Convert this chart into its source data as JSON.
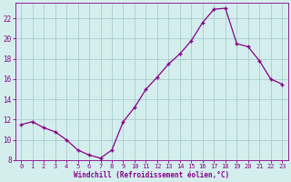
{
  "x": [
    0,
    1,
    2,
    3,
    4,
    5,
    6,
    7,
    8,
    9,
    10,
    11,
    12,
    13,
    14,
    15,
    16,
    17,
    18,
    19,
    20,
    21,
    22,
    23
  ],
  "y": [
    11.5,
    11.8,
    11.2,
    10.8,
    10.0,
    9.0,
    8.5,
    8.2,
    9.0,
    11.8,
    13.2,
    15.0,
    16.2,
    17.5,
    18.5,
    19.8,
    21.6,
    22.9,
    23.0,
    19.5,
    19.2,
    17.8,
    16.0,
    15.5
  ],
  "line_color": "#880088",
  "marker": "+",
  "marker_size": 3.5,
  "bg_color": "#d4eeee",
  "grid_color": "#aacccc",
  "xlabel": "Windchill (Refroidissement éolien,°C)",
  "xlabel_color": "#880088",
  "tick_color": "#880088",
  "xlim": [
    -0.5,
    23.5
  ],
  "ylim": [
    8,
    23.5
  ],
  "yticks": [
    8,
    10,
    12,
    14,
    16,
    18,
    20,
    22
  ],
  "xticks": [
    0,
    1,
    2,
    3,
    4,
    5,
    6,
    7,
    8,
    9,
    10,
    11,
    12,
    13,
    14,
    15,
    16,
    17,
    18,
    19,
    20,
    21,
    22,
    23
  ],
  "figwidth": 3.2,
  "figheight": 2.0,
  "dpi": 100
}
